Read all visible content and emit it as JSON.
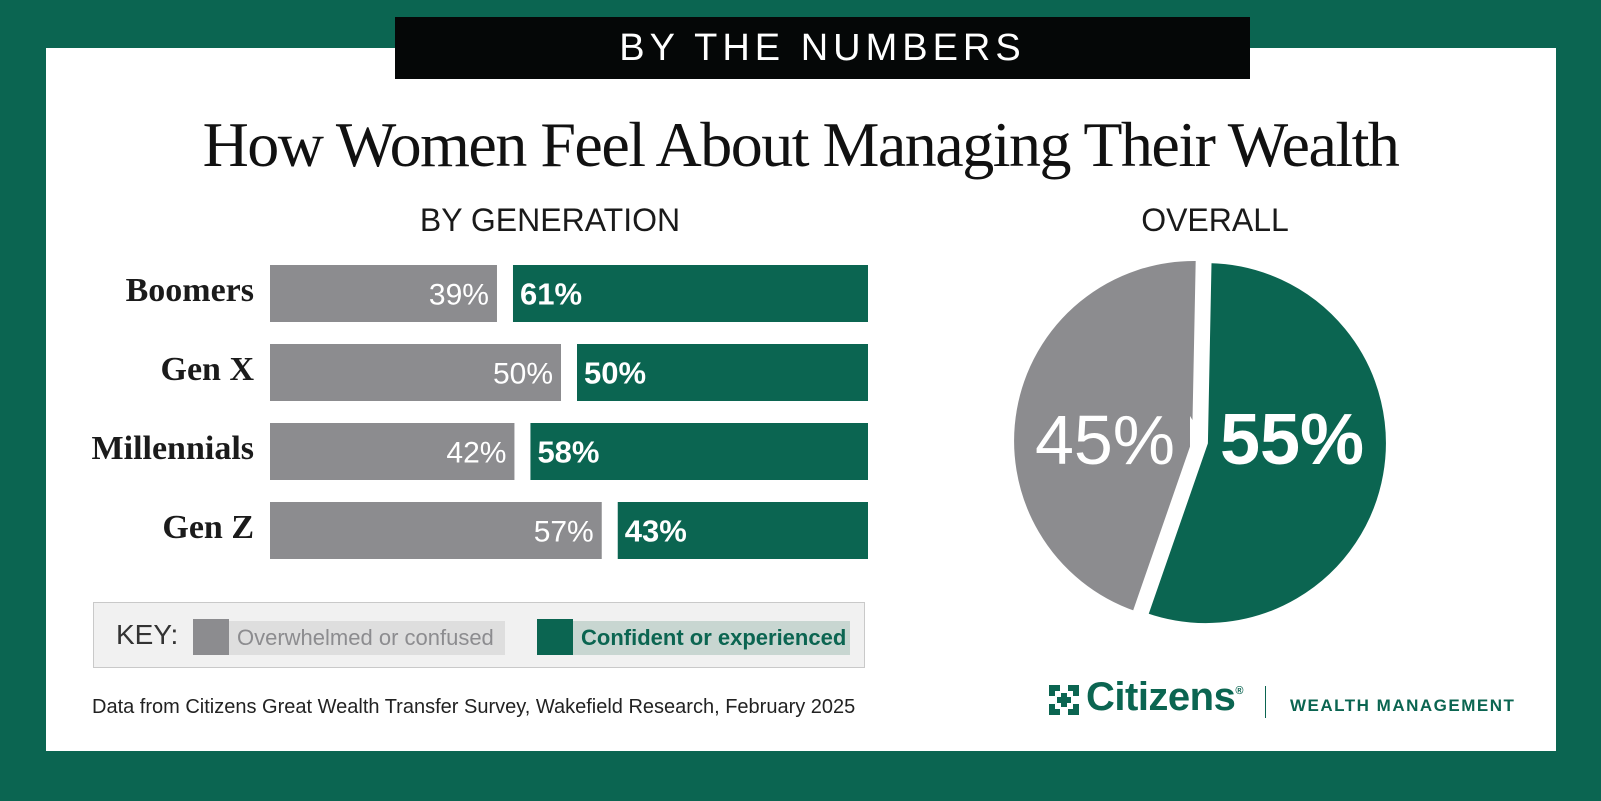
{
  "banner": "BY THE NUMBERS",
  "title": "How Women Feel About Managing Their Wealth",
  "colors": {
    "overwhelmed": "#8c8c8f",
    "confident": "#0b6551",
    "frame": "#0b6551"
  },
  "chart_data": [
    {
      "type": "bar",
      "title": "BY GENERATION",
      "orientation": "horizontal-stacked-100",
      "categories": [
        "Boomers",
        "Gen X",
        "Millennials",
        "Gen Z"
      ],
      "series": [
        {
          "name": "Overwhelmed or confused",
          "values": [
            39,
            50,
            42,
            57
          ],
          "labels": [
            "39%",
            "50%",
            "42%",
            "57%"
          ]
        },
        {
          "name": "Confident or experienced",
          "values": [
            61,
            50,
            58,
            43
          ],
          "labels": [
            "61%",
            "50%",
            "58%",
            "43%"
          ]
        }
      ]
    },
    {
      "type": "pie",
      "title": "OVERALL",
      "slices": [
        {
          "name": "Overwhelmed or confused",
          "value": 45,
          "label": "45%"
        },
        {
          "name": "Confident or experienced",
          "value": 55,
          "label": "55%"
        }
      ]
    }
  ],
  "key": {
    "title": "KEY:",
    "items": [
      "Overwhelmed or confused",
      "Confident or experienced"
    ]
  },
  "footnote": "Data from Citizens Great Wealth Transfer Survey, Wakefield Research, February 2025",
  "logo": {
    "icon": "citizens-logo-icon",
    "name": "Citizens",
    "registered": "®",
    "sub": "WEALTH MANAGEMENT"
  }
}
